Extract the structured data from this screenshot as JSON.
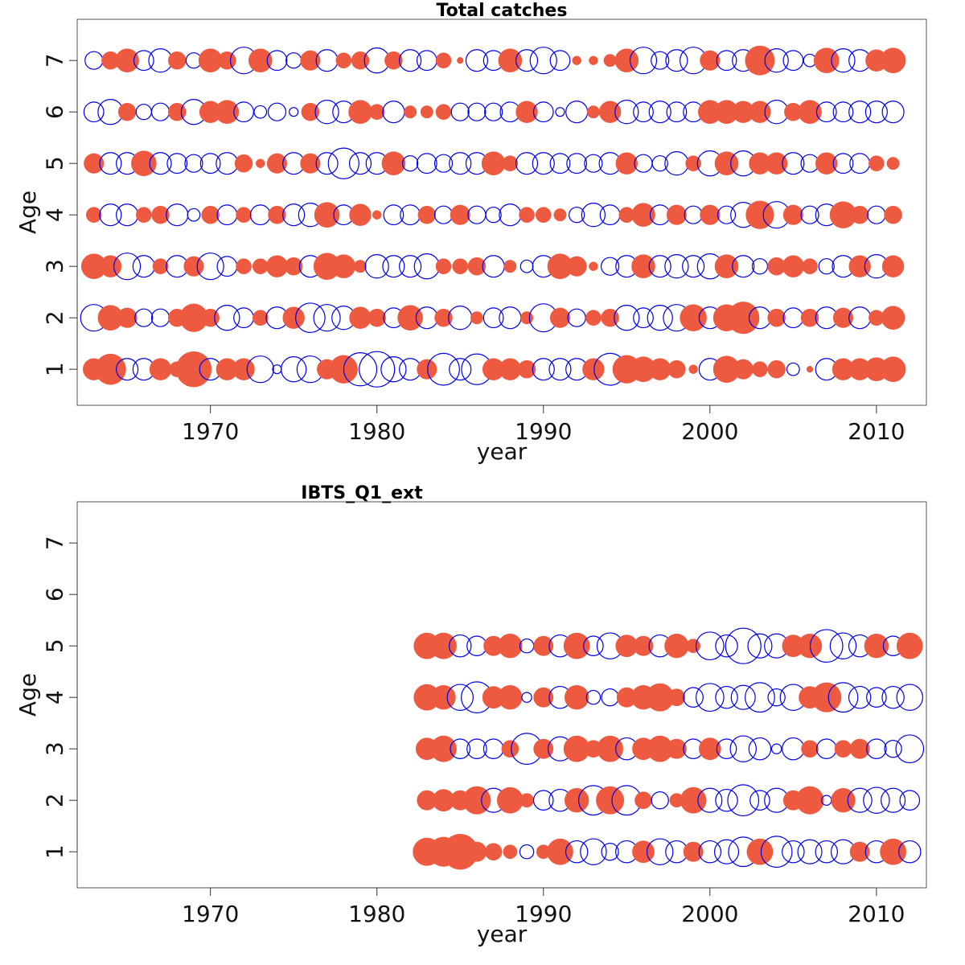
{
  "chart_data": [
    {
      "type": "scatter",
      "subtype": "bubble",
      "title": "Total catches",
      "xlabel": "year",
      "ylabel": "Age",
      "xlim": [
        1962,
        2013
      ],
      "ylim": [
        0.3,
        7.8
      ],
      "xticks": [
        1970,
        1980,
        1990,
        2000,
        2010
      ],
      "yticks": [
        1,
        2,
        3,
        4,
        5,
        6,
        7
      ],
      "legend": "none",
      "colors": {
        "positive": "#ee5a40",
        "negative": "#0000ee"
      },
      "encoding": "Each value is a signed residual per (year, age); filled red circles are positive, open blue circles are negative; circle area scales with magnitude.",
      "years": [
        1963,
        1964,
        1965,
        1966,
        1967,
        1968,
        1969,
        1970,
        1971,
        1972,
        1973,
        1974,
        1975,
        1976,
        1977,
        1978,
        1979,
        1980,
        1981,
        1982,
        1983,
        1984,
        1985,
        1986,
        1987,
        1988,
        1989,
        1990,
        1991,
        1992,
        1993,
        1994,
        1995,
        1996,
        1997,
        1998,
        1999,
        2000,
        2001,
        2002,
        2003,
        2004,
        2005,
        2006,
        2007,
        2008,
        2009,
        2010,
        2011
      ],
      "ages": [
        1,
        2,
        3,
        4,
        5,
        6,
        7
      ],
      "residuals": [
        [
          0.6,
          1.2,
          -0.6,
          -0.6,
          0.6,
          0.3,
          1.6,
          -0.6,
          0.6,
          0.6,
          -0.9,
          -0.1,
          -0.8,
          -0.9,
          0.5,
          1.0,
          -1.4,
          -1.6,
          -0.8,
          -0.6,
          0.5,
          -1.3,
          -0.6,
          -1.2,
          0.6,
          0.6,
          0.4,
          -0.6,
          -0.6,
          -0.6,
          0.6,
          -1.3,
          1.0,
          0.8,
          0.6,
          0.4,
          0.1,
          -0.6,
          0.9,
          0.5,
          0.3,
          0.4,
          -0.2,
          0.05,
          -0.6,
          0.6,
          0.6,
          0.7,
          0.8
        ],
        [
          -0.9,
          0.8,
          0.5,
          -0.4,
          -0.4,
          0.4,
          1.0,
          0.4,
          -0.8,
          -0.5,
          0.3,
          -0.6,
          0.6,
          -1.1,
          -0.9,
          -0.7,
          0.6,
          0.4,
          -0.5,
          0.8,
          -0.6,
          0.4,
          -0.7,
          0.2,
          -0.5,
          -0.6,
          0.2,
          -1.0,
          0.5,
          -0.4,
          0.3,
          0.4,
          -0.8,
          -0.5,
          -0.8,
          -0.9,
          0.9,
          -0.6,
          0.9,
          1.3,
          -0.6,
          0.4,
          -0.5,
          0.4,
          -0.6,
          0.5,
          -0.6,
          0.3,
          0.7
        ],
        [
          0.8,
          0.6,
          -0.9,
          -0.6,
          0.3,
          -0.6,
          0.5,
          -0.9,
          -0.5,
          0.3,
          0.3,
          0.6,
          0.4,
          -0.6,
          0.9,
          0.7,
          0.2,
          -0.7,
          -0.6,
          -0.6,
          -0.8,
          0.3,
          0.3,
          0.4,
          -0.6,
          0.2,
          -0.2,
          -0.6,
          0.8,
          0.5,
          0.1,
          -0.4,
          -0.6,
          0.7,
          -0.6,
          -0.7,
          -0.6,
          -0.8,
          0.7,
          -0.6,
          -0.3,
          0.4,
          0.6,
          0.3,
          -0.3,
          -0.6,
          0.6,
          -0.7,
          0.6
        ],
        [
          0.3,
          -0.6,
          -0.6,
          0.3,
          0.4,
          -0.6,
          -0.2,
          0.4,
          -0.5,
          0.3,
          -0.5,
          0.4,
          -0.6,
          -0.7,
          0.8,
          -0.5,
          0.6,
          0.1,
          -0.5,
          -0.5,
          0.4,
          -0.4,
          0.5,
          -0.4,
          -0.3,
          -0.6,
          0.3,
          0.3,
          0.2,
          -0.3,
          -0.7,
          -0.5,
          0.3,
          0.7,
          -0.5,
          0.5,
          -0.4,
          0.5,
          -0.4,
          -0.8,
          1.0,
          -0.9,
          0.5,
          -0.4,
          -0.6,
          0.9,
          0.4,
          -0.4,
          0.4
        ],
        [
          0.5,
          -0.6,
          -0.6,
          0.8,
          -0.6,
          -0.5,
          -0.4,
          -0.5,
          -0.6,
          0.4,
          0.1,
          0.5,
          -0.6,
          0.5,
          -0.6,
          -1.2,
          -0.6,
          -0.6,
          0.7,
          -0.3,
          -0.5,
          -0.4,
          -0.6,
          -0.6,
          0.7,
          0.3,
          -0.6,
          -0.6,
          -0.5,
          -0.5,
          -0.4,
          -0.6,
          0.6,
          -0.4,
          -0.3,
          -0.7,
          0.3,
          -0.8,
          0.7,
          -0.8,
          0.6,
          0.6,
          -0.6,
          -0.4,
          0.6,
          -0.5,
          -0.5,
          0.3,
          0.2
        ],
        [
          -0.5,
          -0.8,
          0.4,
          -0.3,
          -0.4,
          0.4,
          -0.8,
          0.6,
          0.7,
          -0.5,
          -0.2,
          -0.4,
          -0.1,
          0.4,
          -0.7,
          -0.6,
          0.7,
          0.3,
          -0.6,
          0.2,
          0.2,
          0.3,
          -0.4,
          -0.4,
          -0.4,
          -0.5,
          0.6,
          -0.5,
          -0.1,
          -0.6,
          0.2,
          0.6,
          -0.7,
          -0.5,
          -0.6,
          -0.5,
          -0.5,
          0.7,
          0.7,
          0.6,
          0.6,
          -0.7,
          0.4,
          0.7,
          -0.5,
          -0.5,
          -0.6,
          -0.6,
          -0.6
        ],
        [
          -0.4,
          0.4,
          0.7,
          -0.5,
          -0.7,
          0.4,
          -0.3,
          0.7,
          0.4,
          -0.9,
          0.7,
          -0.5,
          -0.3,
          0.5,
          -0.6,
          0.3,
          0.4,
          -0.8,
          0.4,
          -0.6,
          -0.5,
          0.3,
          0.05,
          -0.6,
          -0.5,
          0.7,
          -0.6,
          -0.9,
          -0.5,
          0.1,
          0.1,
          0.2,
          0.7,
          -0.9,
          -0.4,
          -0.6,
          -0.9,
          0.5,
          -0.5,
          -0.6,
          1.1,
          -0.7,
          -0.5,
          -0.2,
          0.8,
          -0.7,
          -0.6,
          0.6,
          0.8
        ]
      ]
    },
    {
      "type": "scatter",
      "subtype": "bubble",
      "title": "IBTS_Q1_ext",
      "xlabel": "year",
      "ylabel": "Age",
      "xlim": [
        1962,
        2013
      ],
      "ylim": [
        0.3,
        7.8
      ],
      "xticks": [
        1970,
        1980,
        1990,
        2000,
        2010
      ],
      "yticks": [
        1,
        2,
        3,
        4,
        5,
        6,
        7
      ],
      "legend": "none",
      "colors": {
        "positive": "#ee5a40",
        "negative": "#0000ee"
      },
      "encoding": "Each value is a signed residual per (year, age); filled red circles are positive, open blue circles are negative; circle area scales with magnitude.",
      "years": [
        1983,
        1984,
        1985,
        1986,
        1987,
        1988,
        1989,
        1990,
        1991,
        1992,
        1993,
        1994,
        1995,
        1996,
        1997,
        1998,
        1999,
        2000,
        2001,
        2002,
        2003,
        2004,
        2005,
        2006,
        2007,
        2008,
        2009,
        2010,
        2011,
        2012
      ],
      "ages": [
        1,
        2,
        3,
        4,
        5
      ],
      "residuals": [
        [
          0.8,
          0.9,
          1.3,
          0.4,
          0.3,
          0.2,
          -0.2,
          0.2,
          0.7,
          -0.5,
          -0.7,
          -0.3,
          -0.5,
          0.5,
          -0.7,
          -0.5,
          0.4,
          -0.5,
          -0.6,
          -0.9,
          0.7,
          -1.0,
          -0.5,
          -0.6,
          -0.5,
          -0.6,
          0.4,
          -0.5,
          0.7,
          -0.5
        ],
        [
          0.4,
          0.5,
          0.4,
          0.8,
          -0.6,
          0.7,
          0.2,
          -0.4,
          -0.5,
          0.6,
          -0.9,
          0.8,
          -0.9,
          0.3,
          -0.3,
          0.2,
          0.7,
          -0.6,
          -0.5,
          -1.0,
          -0.4,
          -0.6,
          0.4,
          0.8,
          -0.1,
          0.6,
          -0.6,
          -0.7,
          -0.6,
          -0.4
        ],
        [
          0.5,
          0.7,
          -0.4,
          -0.4,
          -0.4,
          0.3,
          -1.0,
          0.4,
          -0.6,
          0.7,
          0.3,
          0.7,
          -0.5,
          0.5,
          0.7,
          0.4,
          -0.4,
          0.5,
          -0.4,
          -0.7,
          -0.5,
          -0.1,
          -0.5,
          0.3,
          -0.4,
          0.3,
          0.4,
          -0.4,
          -0.3,
          -0.8
        ],
        [
          0.7,
          0.6,
          -0.7,
          -1.0,
          0.5,
          0.6,
          -0.1,
          0.4,
          -0.5,
          0.6,
          -0.2,
          -0.3,
          0.4,
          0.6,
          0.8,
          0.3,
          -0.4,
          -0.8,
          -0.5,
          -0.6,
          -0.9,
          -0.3,
          -0.7,
          0.5,
          0.9,
          -0.9,
          -0.5,
          -0.4,
          -0.5,
          -0.7
        ],
        [
          0.7,
          0.7,
          -0.5,
          -0.4,
          0.4,
          0.6,
          -0.2,
          0.4,
          -0.5,
          0.7,
          -0.4,
          -0.7,
          0.5,
          0.4,
          -0.5,
          0.6,
          0.2,
          -0.8,
          -0.5,
          -1.3,
          -0.6,
          -0.6,
          0.5,
          0.6,
          -1.1,
          -0.7,
          -0.5,
          0.6,
          -0.4,
          0.7
        ]
      ]
    }
  ]
}
